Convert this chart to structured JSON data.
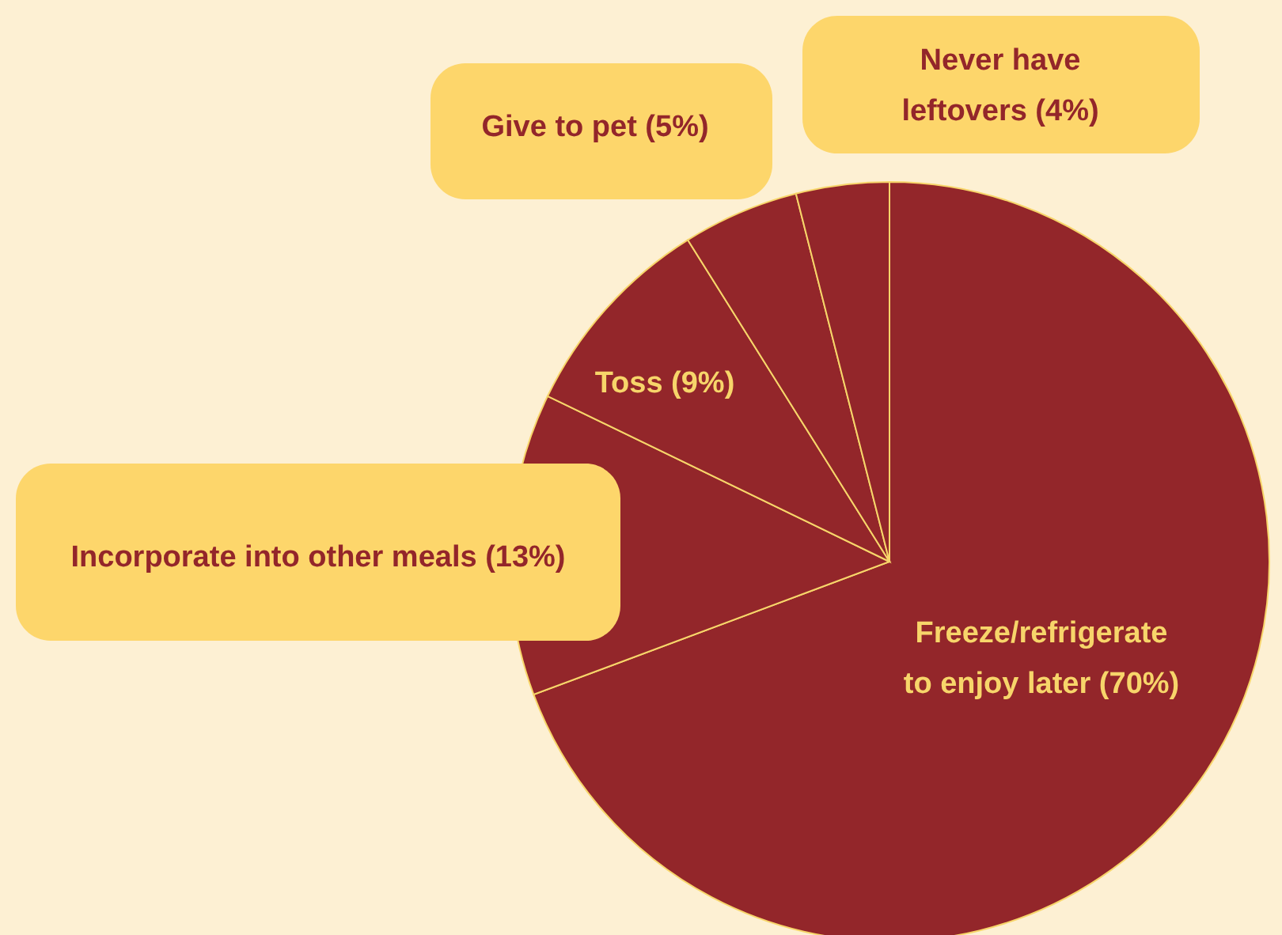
{
  "chart_data": {
    "type": "pie",
    "categories": [
      "Freeze/refrigerate to enjoy later",
      "Incorporate into other meals",
      "Toss",
      "Give to pet",
      "Never have leftovers"
    ],
    "values": [
      70,
      13,
      9,
      5,
      4
    ],
    "value_labels": [
      "(70%)",
      "(13%)",
      "(9%)",
      "(5%)",
      "(4%)"
    ],
    "colors": [
      "#93262a",
      "#93262a",
      "#93262a",
      "#93262a",
      "#93262a"
    ]
  }
}
